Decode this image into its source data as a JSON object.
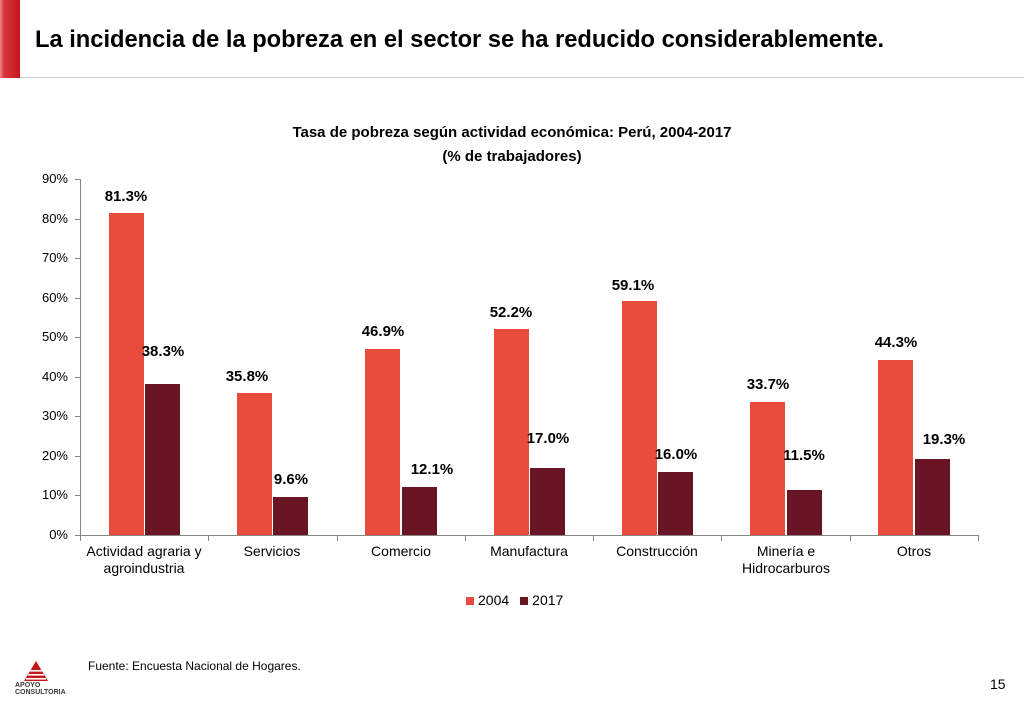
{
  "slide": {
    "title": "La incidencia de la pobreza en el sector se ha reducido considerablemente.",
    "source": "Fuente: Encuesta Nacional de Hogares.",
    "page_number": "15",
    "accent_color": "#c5161c",
    "logo": {
      "icon": "apoyo-logo-icon",
      "line1": "APOYO",
      "line2": "CONSULTORIA"
    }
  },
  "chart_data": {
    "type": "bar",
    "title": "Tasa de pobreza según actividad económica: Perú, 2004-2017",
    "subtitle": "(% de trabajadores)",
    "xlabel": "",
    "ylabel": "",
    "categories": [
      "Actividad agraria y agroindustria",
      "Servicios",
      "Comercio",
      "Manufactura",
      "Construcción",
      "Minería e Hidrocarburos",
      "Otros"
    ],
    "series": [
      {
        "name": "2004",
        "color": "#E84C3D",
        "values": [
          81.3,
          35.8,
          46.9,
          52.2,
          59.1,
          33.7,
          44.3
        ],
        "labels": [
          "81.3%",
          "35.8%",
          "46.9%",
          "52.2%",
          "59.1%",
          "33.7%",
          "44.3%"
        ]
      },
      {
        "name": "2017",
        "color": "#6A1526",
        "values": [
          38.3,
          9.6,
          12.1,
          17.0,
          16.0,
          11.5,
          19.3
        ],
        "labels": [
          "38.3%",
          "9.6%",
          "12.1%",
          "17.0%",
          "16.0%",
          "11.5%",
          "19.3%"
        ]
      }
    ],
    "ylim": [
      0,
      90
    ],
    "yticks": [
      0,
      10,
      20,
      30,
      40,
      50,
      60,
      70,
      80,
      90
    ],
    "ytick_labels": [
      "0%",
      "10%",
      "20%",
      "30%",
      "40%",
      "50%",
      "60%",
      "70%",
      "80%",
      "90%"
    ],
    "grid": false,
    "legend": "bottom"
  }
}
